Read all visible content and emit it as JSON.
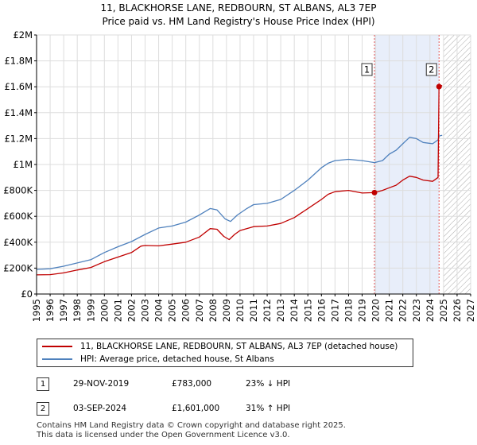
{
  "header": {
    "title_line1": "11, BLACKHORSE LANE, REDBOURN, ST ALBANS, AL3 7EP",
    "title_line2": "Price paid vs. HM Land Registry's House Price Index (HPI)"
  },
  "colors": {
    "property_line": "#c00000",
    "hpi_line": "#4f81bd",
    "grid": "#dddddd",
    "shade": "#e8eefa",
    "marker_vline": "#e05050",
    "future_hatch": "#aaaaaa"
  },
  "chart_data": {
    "type": "line",
    "title": "",
    "xlabel": "",
    "ylabel": "",
    "xlim": [
      1995,
      2027
    ],
    "ylim": [
      0,
      2000000
    ],
    "x_ticks": [
      "1995",
      "1996",
      "1997",
      "1998",
      "1999",
      "2000",
      "2001",
      "2002",
      "2003",
      "2004",
      "2005",
      "2006",
      "2007",
      "2008",
      "2009",
      "2010",
      "2011",
      "2012",
      "2013",
      "2014",
      "2015",
      "2016",
      "2017",
      "2018",
      "2019",
      "2020",
      "2021",
      "2022",
      "2023",
      "2024",
      "2025",
      "2026",
      "2027"
    ],
    "y_ticks": [
      {
        "value": 0,
        "label": "£0"
      },
      {
        "value": 200000,
        "label": "£200K"
      },
      {
        "value": 400000,
        "label": "£400K"
      },
      {
        "value": 600000,
        "label": "£600K"
      },
      {
        "value": 800000,
        "label": "£800K"
      },
      {
        "value": 1000000,
        "label": "£1M"
      },
      {
        "value": 1200000,
        "label": "£1.2M"
      },
      {
        "value": 1400000,
        "label": "£1.4M"
      },
      {
        "value": 1600000,
        "label": "£1.6M"
      },
      {
        "value": 1800000,
        "label": "£1.8M"
      },
      {
        "value": 2000000,
        "label": "£2M"
      }
    ],
    "grid": true,
    "legend_position": "below",
    "series": [
      {
        "name": "11, BLACKHORSE LANE, REDBOURN, ST ALBANS, AL3 7EP (detached house)",
        "color": "#c00000",
        "points": [
          [
            1995.0,
            148000
          ],
          [
            1996.0,
            150000
          ],
          [
            1997.0,
            163000
          ],
          [
            1998.0,
            185000
          ],
          [
            1999.0,
            205000
          ],
          [
            2000.0,
            250000
          ],
          [
            2001.0,
            285000
          ],
          [
            2002.0,
            320000
          ],
          [
            2002.7,
            370000
          ],
          [
            2003.0,
            375000
          ],
          [
            2004.0,
            372000
          ],
          [
            2005.0,
            385000
          ],
          [
            2006.0,
            400000
          ],
          [
            2007.0,
            440000
          ],
          [
            2007.8,
            505000
          ],
          [
            2008.3,
            500000
          ],
          [
            2008.8,
            445000
          ],
          [
            2009.2,
            420000
          ],
          [
            2009.6,
            460000
          ],
          [
            2010.0,
            490000
          ],
          [
            2011.0,
            520000
          ],
          [
            2012.0,
            525000
          ],
          [
            2013.0,
            545000
          ],
          [
            2014.0,
            590000
          ],
          [
            2015.0,
            660000
          ],
          [
            2016.0,
            730000
          ],
          [
            2016.5,
            770000
          ],
          [
            2017.0,
            790000
          ],
          [
            2018.0,
            800000
          ],
          [
            2019.0,
            780000
          ],
          [
            2019.91,
            783000
          ],
          [
            2020.5,
            800000
          ],
          [
            2021.0,
            820000
          ],
          [
            2021.5,
            840000
          ],
          [
            2022.0,
            880000
          ],
          [
            2022.5,
            910000
          ],
          [
            2023.0,
            900000
          ],
          [
            2023.5,
            880000
          ],
          [
            2024.2,
            870000
          ],
          [
            2024.6,
            900000
          ],
          [
            2024.67,
            1601000
          ],
          [
            2024.9,
            1610000
          ]
        ]
      },
      {
        "name": "HPI: Average price, detached house, St Albans",
        "color": "#4f81bd",
        "points": [
          [
            1995.0,
            190000
          ],
          [
            1996.0,
            195000
          ],
          [
            1997.0,
            215000
          ],
          [
            1998.0,
            240000
          ],
          [
            1999.0,
            265000
          ],
          [
            2000.0,
            320000
          ],
          [
            2001.0,
            365000
          ],
          [
            2002.0,
            405000
          ],
          [
            2003.0,
            460000
          ],
          [
            2004.0,
            510000
          ],
          [
            2005.0,
            525000
          ],
          [
            2006.0,
            555000
          ],
          [
            2007.0,
            610000
          ],
          [
            2007.8,
            660000
          ],
          [
            2008.3,
            650000
          ],
          [
            2008.9,
            580000
          ],
          [
            2009.3,
            560000
          ],
          [
            2009.8,
            610000
          ],
          [
            2010.5,
            660000
          ],
          [
            2011.0,
            690000
          ],
          [
            2012.0,
            700000
          ],
          [
            2013.0,
            730000
          ],
          [
            2014.0,
            800000
          ],
          [
            2015.0,
            880000
          ],
          [
            2016.0,
            975000
          ],
          [
            2016.5,
            1010000
          ],
          [
            2017.0,
            1030000
          ],
          [
            2018.0,
            1040000
          ],
          [
            2019.0,
            1030000
          ],
          [
            2019.91,
            1015000
          ],
          [
            2020.5,
            1030000
          ],
          [
            2021.0,
            1080000
          ],
          [
            2021.5,
            1110000
          ],
          [
            2022.0,
            1160000
          ],
          [
            2022.5,
            1210000
          ],
          [
            2023.0,
            1200000
          ],
          [
            2023.5,
            1170000
          ],
          [
            2024.2,
            1160000
          ],
          [
            2024.6,
            1190000
          ],
          [
            2024.67,
            1220000
          ],
          [
            2024.9,
            1225000
          ]
        ]
      }
    ],
    "annotations": [
      {
        "label": "1",
        "x": 2019.91,
        "y": 783000
      },
      {
        "label": "2",
        "x": 2024.67,
        "y": 1601000
      }
    ],
    "shaded_range": [
      2019.91,
      2024.67
    ],
    "future_from": 2025.0
  },
  "legend": {
    "items": [
      {
        "label": "11, BLACKHORSE LANE, REDBOURN, ST ALBANS, AL3 7EP (detached house)",
        "color": "#c00000"
      },
      {
        "label": "HPI: Average price, detached house, St Albans",
        "color": "#4f81bd"
      }
    ]
  },
  "transactions": [
    {
      "num": "1",
      "date": "29-NOV-2019",
      "price": "£783,000",
      "hpi": "23% ↓ HPI"
    },
    {
      "num": "2",
      "date": "03-SEP-2024",
      "price": "£1,601,000",
      "hpi": "31% ↑ HPI"
    }
  ],
  "footer": {
    "line1": "Contains HM Land Registry data © Crown copyright and database right 2025.",
    "line2": "This data is licensed under the Open Government Licence v3.0."
  }
}
